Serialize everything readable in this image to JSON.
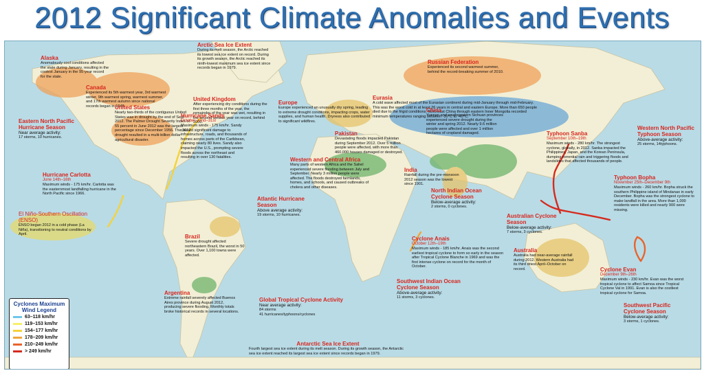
{
  "title": "2012 Significant Climate Anomalies and Events",
  "events": {
    "alaska": {
      "heading": "Alaska",
      "body": "Anomalously cool conditions affected the state during January, resulting in the coolest January in the 95-year record for the state."
    },
    "canada": {
      "heading": "Canada",
      "body": "Experienced its 5th warmest year, 3rd warmest winter, 9th warmest spring, warmest summer, and 17th warmest autumn since national records began in 1948."
    },
    "arctic": {
      "heading": "Arctic Sea Ice Extent",
      "body": "During its melt season, the Arctic reached its lowest sea ice extent on record. During its growth season, the Arctic reached its ninth-lowest maximum sea ice extent since records began in 1979."
    },
    "uk": {
      "heading": "United Kingdom",
      "body": "After experiencing dry conditions during the first three months of the year, the remainder of the year was wet, resulting in the second wettest year on record, behind 2000."
    },
    "russia": {
      "heading": "Russian Federation",
      "body": "Experienced its second warmest summer, behind the record-breaking summer of 2010."
    },
    "eurasia": {
      "heading": "Eurasia",
      "body": "A cold wave affected most of the Eurasian continent during mid-January through mid-February. This was the worst cold in at least 26 years in central and eastern Europe. More than 650 people died due to the frigid conditions. Northeast China through eastern Inner Mongolia recorded minimum temperatures ranging between -30°C to -40°C."
    },
    "us": {
      "heading": "United States",
      "body": "Nearly two-thirds of the contiguous United States was in drought by the end of Sept 2012. The Palmer Drought Severity Index of 55 percent in June 2012 was the largest percentage since December 1956. The 2012 drought resulted in a multi-billion dollar agricultural disaster."
    },
    "europe": {
      "heading": "Europe",
      "body": "Europe experienced an unusually dry spring, leading to extreme drought conditions, impacting crops, water supplies, and human health. Dryness also contributed to significant wildfires."
    },
    "china": {
      "heading": "China",
      "body": "Yunnan and southwestern Sichuan provinces experienced severe drought during the winter and spring 2012. Nearly 9.6 million people were affected and over 1 million hectares of cropland damaged."
    },
    "enp": {
      "heading": "Eastern North Pacific Hurricane Season",
      "sub": "Near average activity:",
      "body": "17 storms, 10 hurricanes."
    },
    "sandy": {
      "heading": "Hurricane Sandy",
      "date": "October 22nd–31st",
      "body": "Maximum winds - 175 km/hr. Sandy caused significant damage to infrastructure, roads, and thousands of homes across parts of the Caribbean, claiming nearly 80 lives. Sandy also impacted the U.S., prompting severe floods across the northeast and resulting in over 130 fatalities."
    },
    "pakistan": {
      "heading": "Pakistan",
      "body": "Devastating floods impacted Pakistan during September 2012. Over 5 million people were affected, with more than 460,000 houses damaged or destroyed."
    },
    "sanba": {
      "heading": "Typhoon Sanba",
      "date": "September 10th–19th",
      "body": "Maximum winds - 280 km/hr. The strongest cyclone, globally, in 2012. Sanba impacted the Philippines, Japan, and the Korean Peninsula, dumping torrential rain and triggering floods and landslides that affected thousands of people."
    },
    "wnp": {
      "heading": "Western North Pacific Typhoon Season",
      "sub": "Above-average activity:",
      "body": "25 storms, 14typhoons."
    },
    "wca": {
      "heading": "Western and Central Africa",
      "body": "Many parts of western Africa and the Sahel experienced severe flooding between July and September. Nearly 3 million people were affected. The floods destroyed farmlands, homes, and schools, and caused outbreaks of cholera and other diseases."
    },
    "india": {
      "heading": "India",
      "body": "Rainfall during the pre-monsoon 2012 season was the lowest since 1901."
    },
    "carlotta": {
      "heading": "Hurricane Carlotta",
      "date": "June 14th–16th",
      "body": "Maximum winds - 175 km/hr. Carlotta was the easternmost landfalling hurricane in the North Pacific since 1966."
    },
    "bopha": {
      "heading": "Typhoon Bopha",
      "date": "November 25th–December 9th",
      "body": "Maximum winds - 260 km/hr. Bopha struck the southern Philippine island of Mindanao in early December. Bopha was the strongest cyclone to make landfall in the area. More than 1,000 residents were killed and nearly 900 were missing."
    },
    "enso": {
      "heading": "El Niño-Southern Oscillation (ENSO)",
      "body": "ENSO began 2012 in a cold phase (La Niña), transitioning to neutral conditions by April."
    },
    "atlantic": {
      "heading": "Atlantic Hurricane Season",
      "sub": "Above average activity:",
      "body": "19 storms, 10 hurricanes."
    },
    "nio": {
      "heading": "North Indian Ocean Cyclone Season",
      "sub": "Below-average activity:",
      "body": "2 storms, 0 cyclones."
    },
    "brazil": {
      "heading": "Brazil",
      "body": "Severe drought affected northeastern Brazil, the worst in 50 years. Over 1,100 towns were affected."
    },
    "aus_season": {
      "heading": "Australian Cyclone Season",
      "sub": "Below-average activity:",
      "body": "7 storms, 3 cyclones."
    },
    "anais": {
      "heading": "Cyclone Anais",
      "date": "October 12th–19th",
      "body": "Maximum winds - 185 km/hr. Anais was the second earliest tropical cyclone to form so early in the season after Tropical Cyclone Blanche in 1969 and was the first intense cyclone on record for the month of October."
    },
    "australia": {
      "heading": "Australia",
      "body": "Australia had near-average rainfall during 2012. Western Australia had its third driest April–October on record."
    },
    "evan": {
      "heading": "Cyclone Evan",
      "date": "December 9th–26th",
      "body": "Maximum winds - 230 km/hr. Evan was the worst tropical cyclone to affect Samoa since Tropical Cyclone Val in 1991. Evan is also the costliest tropical cyclone for Samoa."
    },
    "swio": {
      "heading": "Southwest Indian Ocean Cyclone Season",
      "sub": "Above-average activity:",
      "body": "11 storms, 3 cyclones."
    },
    "argentina": {
      "heading": "Argentina",
      "body": "Extreme rainfall severely affected Buenos Aires province during August 2012, producing severe flooding. Monthly totals broke historical records in several locations."
    },
    "gtc": {
      "heading": "Global Tropical Cyclone Activity",
      "sub": "Near average activity:",
      "body": "84 storms",
      "body2": "41 hurricanes/typhoons/cyclones"
    },
    "swp": {
      "heading": "Southwest Pacific Cyclone Season",
      "sub": "Below-average activity:",
      "body": "3 storms, 1 cyclones."
    },
    "antarctic": {
      "heading": "Antarctic Sea Ice Extent",
      "body": "Fourth largest sea ice extent during its melt season. During its growth season, the Antarctic sea ice extent reached its largest sea ice extent since records began in 1979."
    }
  },
  "legend": {
    "title": "Cyclones Maximum Wind Legend",
    "items": [
      {
        "label": "63–118 km/hr",
        "color": "#6ec6ea"
      },
      {
        "label": "119–153 km/hr",
        "color": "#f7ef6a"
      },
      {
        "label": "154–177 km/hr",
        "color": "#f5d23a"
      },
      {
        "label": "178–209 km/hr",
        "color": "#f0a53a"
      },
      {
        "label": "210–249 km/hr",
        "color": "#e8642c"
      },
      {
        "label": "> 249 km/hr",
        "color": "#d52a1e"
      }
    ]
  },
  "colors": {
    "ocean": "#b9dbe6",
    "land": "#f2efd6",
    "title": "#2f6fb0",
    "heading": "#d7261e",
    "warm": "#f0a25a",
    "wet": "#6fb36a",
    "dry": "#e6c46a",
    "cold": "#6aa8d6"
  }
}
